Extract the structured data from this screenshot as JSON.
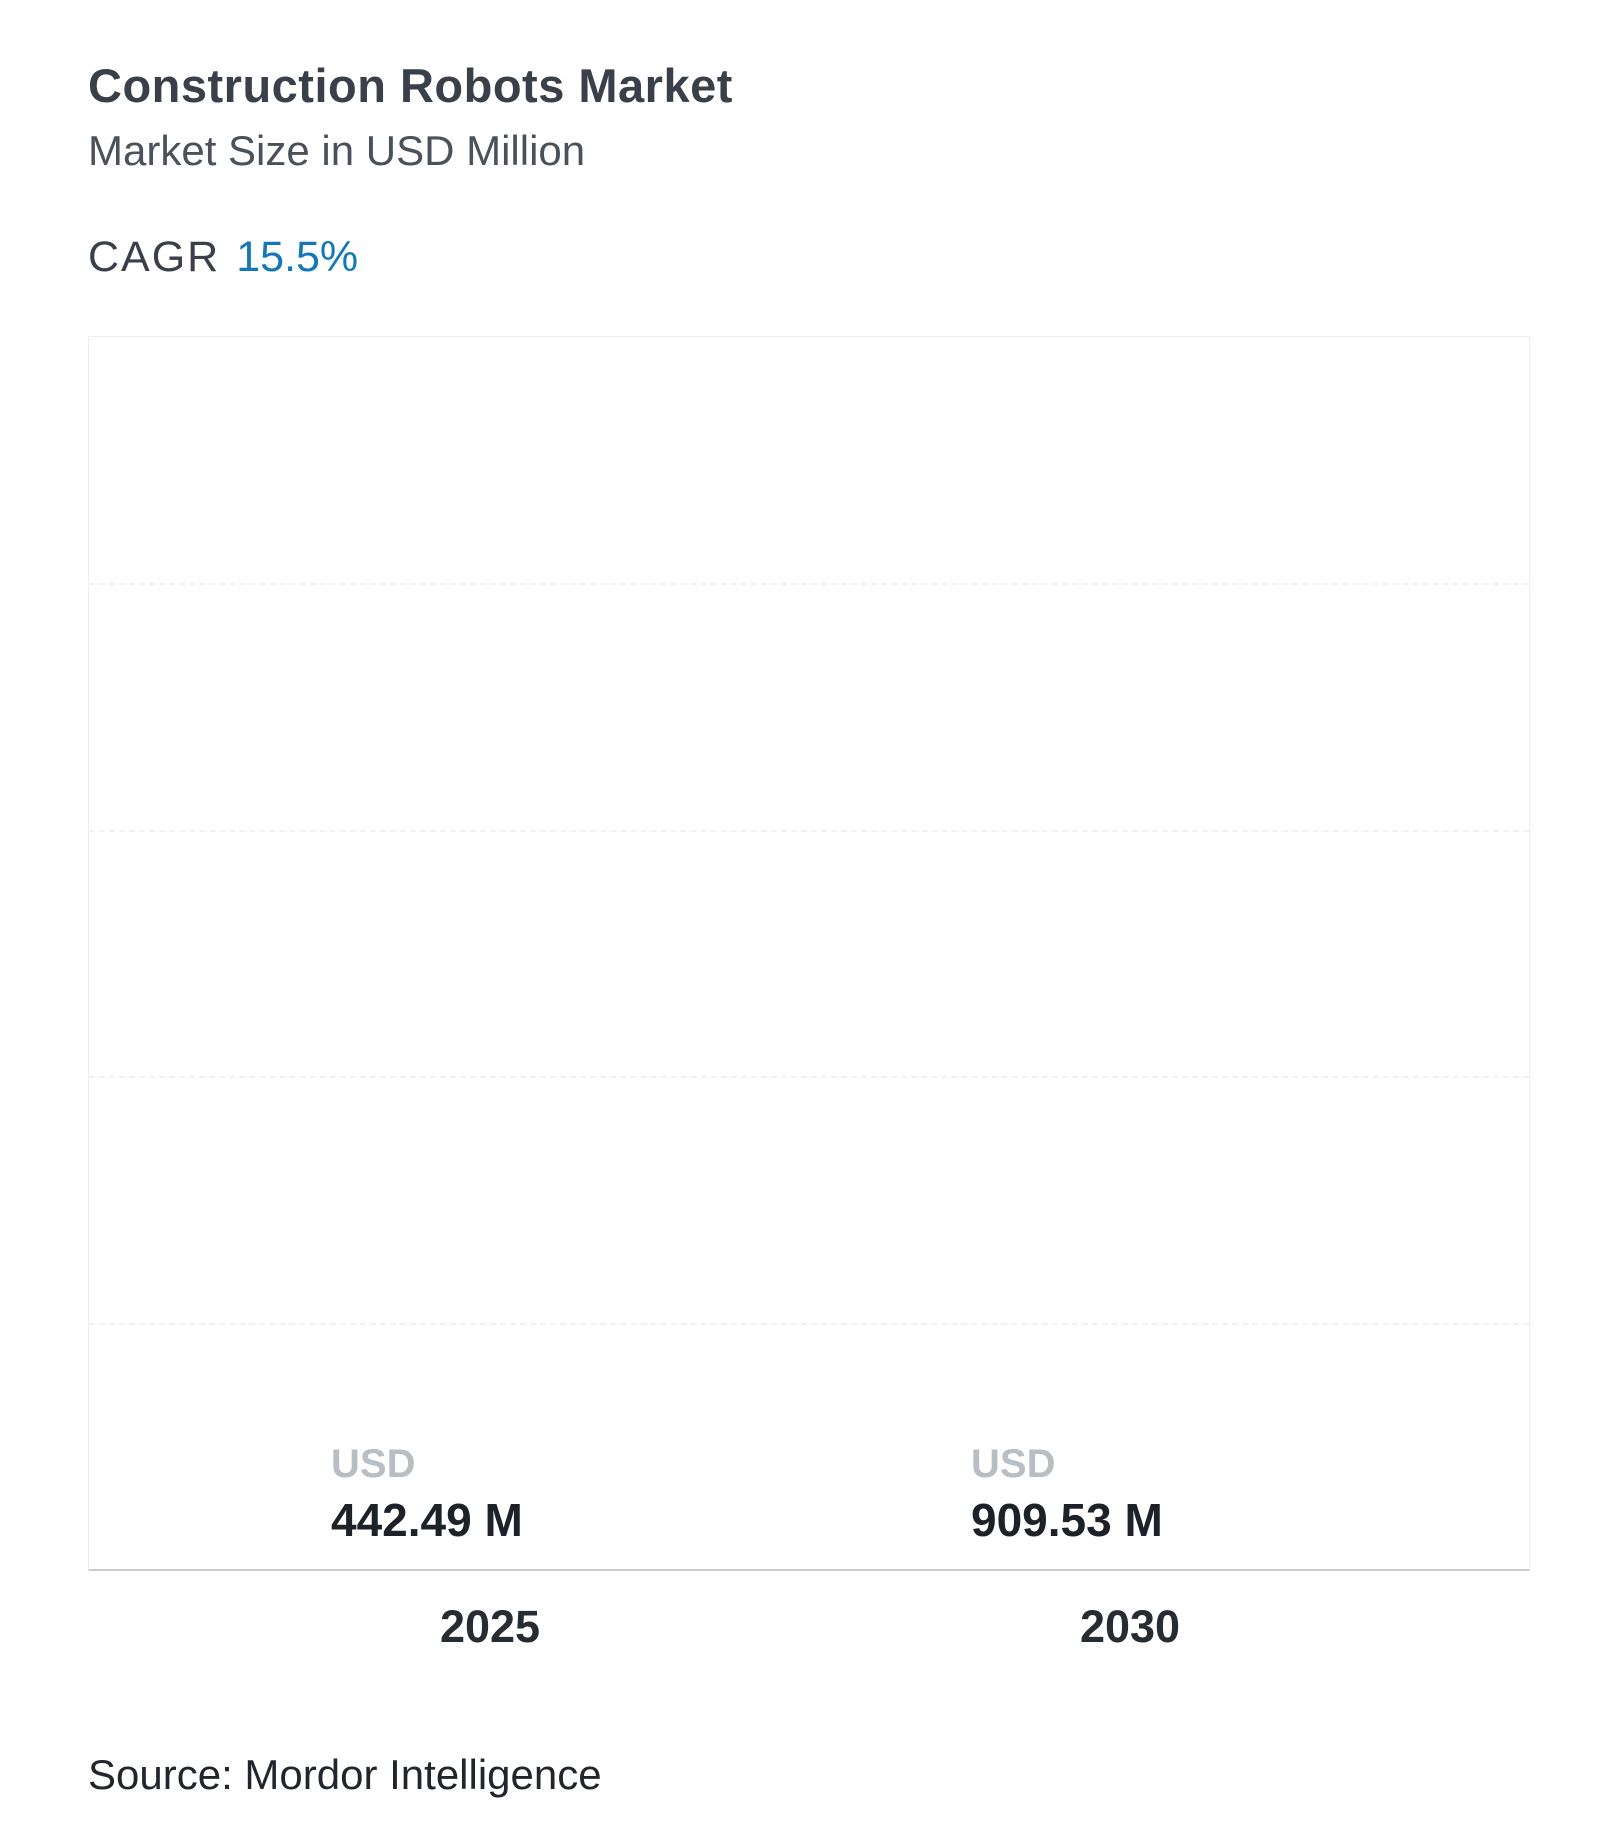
{
  "header": {
    "title": "Construction Robots Market",
    "subtitle": "Market Size in USD Million",
    "cagr_label": "CAGR",
    "cagr_value": "15.5%"
  },
  "chart_data": {
    "type": "bar",
    "title": "Construction Robots Market",
    "subtitle": "Market Size in USD Million",
    "cagr": "15.5%",
    "categories": [
      "2025",
      "2030"
    ],
    "values": [
      442.49,
      909.53
    ],
    "unit_prefix": "USD",
    "value_labels": [
      "442.49 M",
      "909.53 M"
    ],
    "xlabel": "",
    "ylabel": "",
    "ylim": [
      0,
      1050
    ],
    "grid": "horizontal-dashed",
    "legend": "none",
    "bar_gradient": [
      "#4e8fc0",
      "#43c9d2"
    ],
    "accent_color": "#1478b8"
  },
  "footer": {
    "source": "Source: Mordor Intelligence"
  }
}
